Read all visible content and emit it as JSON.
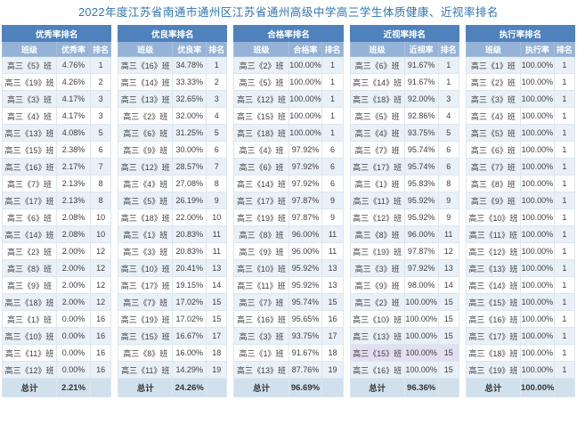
{
  "title": "2022年度江苏省南通市通州区江苏省通州高级中学高三学生体质健康、近视率排名",
  "colors": {
    "header_blue": "#4f81bd",
    "subheader_blue": "#95b3d7",
    "band_row": "#e9f0f7",
    "selected_row": "#e3def1",
    "total_row": "#d0e0ed",
    "title_color": "#2e74b5"
  },
  "tables": [
    {
      "group_header": "优秀率排名",
      "columns": [
        "班级",
        "优秀率",
        "排名"
      ],
      "rows": [
        [
          "高三《5》班",
          "4.76%",
          "1"
        ],
        [
          "高三《19》班",
          "4.26%",
          "2"
        ],
        [
          "高三《3》班",
          "4.17%",
          "3"
        ],
        [
          "高三《4》班",
          "4.17%",
          "3"
        ],
        [
          "高三《13》班",
          "4.08%",
          "5"
        ],
        [
          "高三《15》班",
          "2.38%",
          "6"
        ],
        [
          "高三《16》班",
          "2.17%",
          "7"
        ],
        [
          "高三《7》班",
          "2.13%",
          "8"
        ],
        [
          "高三《17》班",
          "2.13%",
          "8"
        ],
        [
          "高三《6》班",
          "2.08%",
          "10"
        ],
        [
          "高三《14》班",
          "2.08%",
          "10"
        ],
        [
          "高三《2》班",
          "2.00%",
          "12"
        ],
        [
          "高三《8》班",
          "2.00%",
          "12"
        ],
        [
          "高三《9》班",
          "2.00%",
          "12"
        ],
        [
          "高三《18》班",
          "2.00%",
          "12"
        ],
        [
          "高三《1》班",
          "0.00%",
          "16"
        ],
        [
          "高三《10》班",
          "0.00%",
          "16"
        ],
        [
          "高三《11》班",
          "0.00%",
          "16"
        ],
        [
          "高三《12》班",
          "0.00%",
          "16"
        ]
      ],
      "total_label": "总计",
      "total_value": "2.21%",
      "highlight_row": null
    },
    {
      "group_header": "优良率排名",
      "columns": [
        "班级",
        "优良率",
        "排名"
      ],
      "rows": [
        [
          "高三《16》班",
          "34.78%",
          "1"
        ],
        [
          "高三《14》班",
          "33.33%",
          "2"
        ],
        [
          "高三《13》班",
          "32.65%",
          "3"
        ],
        [
          "高三《2》班",
          "32.00%",
          "4"
        ],
        [
          "高三《6》班",
          "31.25%",
          "5"
        ],
        [
          "高三《9》班",
          "30.00%",
          "6"
        ],
        [
          "高三《12》班",
          "28.57%",
          "7"
        ],
        [
          "高三《4》班",
          "27.08%",
          "8"
        ],
        [
          "高三《5》班",
          "26.19%",
          "9"
        ],
        [
          "高三《18》班",
          "22.00%",
          "10"
        ],
        [
          "高三《1》班",
          "20.83%",
          "11"
        ],
        [
          "高三《3》班",
          "20.83%",
          "11"
        ],
        [
          "高三《10》班",
          "20.41%",
          "13"
        ],
        [
          "高三《17》班",
          "19.15%",
          "14"
        ],
        [
          "高三《7》班",
          "17.02%",
          "15"
        ],
        [
          "高三《19》班",
          "17.02%",
          "15"
        ],
        [
          "高三《15》班",
          "16.67%",
          "17"
        ],
        [
          "高三《8》班",
          "16.00%",
          "18"
        ],
        [
          "高三《11》班",
          "14.29%",
          "19"
        ]
      ],
      "total_label": "总计",
      "total_value": "24.26%",
      "highlight_row": null
    },
    {
      "group_header": "合格率排名",
      "columns": [
        "班级",
        "合格率",
        "排名"
      ],
      "rows": [
        [
          "高三《2》班",
          "100.00%",
          "1"
        ],
        [
          "高三《5》班",
          "100.00%",
          "1"
        ],
        [
          "高三《12》班",
          "100.00%",
          "1"
        ],
        [
          "高三《15》班",
          "100.00%",
          "1"
        ],
        [
          "高三《18》班",
          "100.00%",
          "1"
        ],
        [
          "高三《4》班",
          "97.92%",
          "6"
        ],
        [
          "高三《6》班",
          "97.92%",
          "6"
        ],
        [
          "高三《14》班",
          "97.92%",
          "6"
        ],
        [
          "高三《17》班",
          "97.87%",
          "9"
        ],
        [
          "高三《19》班",
          "97.87%",
          "9"
        ],
        [
          "高三《8》班",
          "96.00%",
          "11"
        ],
        [
          "高三《9》班",
          "96.00%",
          "11"
        ],
        [
          "高三《10》班",
          "95.92%",
          "13"
        ],
        [
          "高三《11》班",
          "95.92%",
          "13"
        ],
        [
          "高三《7》班",
          "95.74%",
          "15"
        ],
        [
          "高三《16》班",
          "95.65%",
          "16"
        ],
        [
          "高三《3》班",
          "93.75%",
          "17"
        ],
        [
          "高三《1》班",
          "91.67%",
          "18"
        ],
        [
          "高三《13》班",
          "87.76%",
          "19"
        ]
      ],
      "total_label": "总计",
      "total_value": "96.69%",
      "highlight_row": null
    },
    {
      "group_header": "近视率排名",
      "columns": [
        "班级",
        "近视率",
        "排名"
      ],
      "rows": [
        [
          "高三《6》班",
          "91.67%",
          "1"
        ],
        [
          "高三《14》班",
          "91.67%",
          "1"
        ],
        [
          "高三《18》班",
          "92.00%",
          "3"
        ],
        [
          "高三《5》班",
          "92.86%",
          "4"
        ],
        [
          "高三《4》班",
          "93.75%",
          "5"
        ],
        [
          "高三《7》班",
          "95.74%",
          "6"
        ],
        [
          "高三《17》班",
          "95.74%",
          "6"
        ],
        [
          "高三《1》班",
          "95.83%",
          "8"
        ],
        [
          "高三《11》班",
          "95.92%",
          "9"
        ],
        [
          "高三《12》班",
          "95.92%",
          "9"
        ],
        [
          "高三《8》班",
          "96.00%",
          "11"
        ],
        [
          "高三《19》班",
          "97.87%",
          "12"
        ],
        [
          "高三《3》班",
          "97.92%",
          "13"
        ],
        [
          "高三《9》班",
          "98.00%",
          "14"
        ],
        [
          "高三《2》班",
          "100.00%",
          "15"
        ],
        [
          "高三《10》班",
          "100.00%",
          "15"
        ],
        [
          "高三《13》班",
          "100.00%",
          "15"
        ],
        [
          "高三《15》班",
          "100.00%",
          "15"
        ],
        [
          "高三《16》班",
          "100.00%",
          "15"
        ]
      ],
      "total_label": "总计",
      "total_value": "96.36%",
      "highlight_row": 17
    },
    {
      "group_header": "执行率排名",
      "columns": [
        "班级",
        "执行率",
        "排名"
      ],
      "rows": [
        [
          "高三《1》班",
          "100.00%",
          "1"
        ],
        [
          "高三《2》班",
          "100.00%",
          "1"
        ],
        [
          "高三《3》班",
          "100.00%",
          "1"
        ],
        [
          "高三《4》班",
          "100.00%",
          "1"
        ],
        [
          "高三《5》班",
          "100.00%",
          "1"
        ],
        [
          "高三《6》班",
          "100.00%",
          "1"
        ],
        [
          "高三《7》班",
          "100.00%",
          "1"
        ],
        [
          "高三《8》班",
          "100.00%",
          "1"
        ],
        [
          "高三《9》班",
          "100.00%",
          "1"
        ],
        [
          "高三《10》班",
          "100.00%",
          "1"
        ],
        [
          "高三《11》班",
          "100.00%",
          "1"
        ],
        [
          "高三《12》班",
          "100.00%",
          "1"
        ],
        [
          "高三《13》班",
          "100.00%",
          "1"
        ],
        [
          "高三《14》班",
          "100.00%",
          "1"
        ],
        [
          "高三《15》班",
          "100.00%",
          "1"
        ],
        [
          "高三《16》班",
          "100.00%",
          "1"
        ],
        [
          "高三《17》班",
          "100.00%",
          "1"
        ],
        [
          "高三《18》班",
          "100.00%",
          "1"
        ],
        [
          "高三《19》班",
          "100.00%",
          "1"
        ]
      ],
      "total_label": "总计",
      "total_value": "100.00%",
      "highlight_row": null
    }
  ]
}
